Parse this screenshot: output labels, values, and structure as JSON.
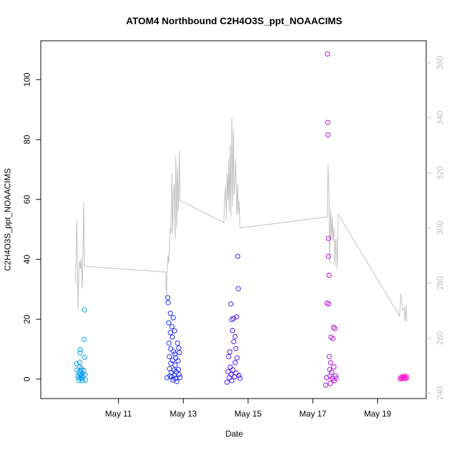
{
  "chart_data": {
    "type": "scatter",
    "title": "ATOM4 Northbound C2H4O3S_ppt_NOAACIMS",
    "xlabel": "Date",
    "ylabel": "C2H4O3S_ppt_NOAACIMS",
    "x_ticks": [
      {
        "x": 11,
        "label": "May 11"
      },
      {
        "x": 13,
        "label": "May 13"
      },
      {
        "x": 15,
        "label": "May 15"
      },
      {
        "x": 17,
        "label": "May 17"
      },
      {
        "x": 19,
        "label": "May 19"
      }
    ],
    "xlim": [
      8.6,
      20.5
    ],
    "ylim": [
      -6.5,
      113
    ],
    "y_ticks": [
      0,
      20,
      40,
      60,
      80,
      100
    ],
    "y2lim": [
      238,
      368
    ],
    "y2_ticks": [
      240,
      260,
      280,
      300,
      320,
      340,
      360
    ],
    "point_color_scale": [
      "#00a9e8",
      "#1f1bf0",
      "#8a10e8",
      "#ff10c8"
    ],
    "line_color": "#c0c0c0",
    "scatter_series": [
      {
        "x": [
          9.7,
          9.72,
          9.75,
          9.77,
          9.78,
          9.79,
          9.8,
          9.8,
          9.81,
          9.82,
          9.82,
          9.83,
          9.84,
          9.85,
          9.86,
          9.87,
          9.88,
          9.88,
          9.9,
          9.92,
          9.94,
          9.95,
          9.96,
          9.97,
          9.98
        ],
        "y": [
          5.1,
          3.0,
          1.0,
          -0.4,
          2.3,
          0.5,
          4.0,
          5.6,
          1.5,
          9.8,
          8.7,
          0.2,
          2.8,
          0.9,
          3.5,
          1.2,
          -0.5,
          0.4,
          1.8,
          2.9,
          13.3,
          23.1,
          7.3,
          1.5,
          -0.3
        ]
      },
      {
        "x": [
          12.5,
          12.52,
          12.53,
          12.55,
          12.56,
          12.57,
          12.58,
          12.59,
          12.6,
          12.6,
          12.61,
          12.62,
          12.63,
          12.64,
          12.65,
          12.66,
          12.67,
          12.68,
          12.69,
          12.7,
          12.71,
          12.72,
          12.73,
          12.74,
          12.75,
          12.76,
          12.77,
          12.78,
          12.8,
          12.82,
          12.84,
          12.85,
          12.86,
          12.87,
          12.88,
          12.9
        ],
        "y": [
          0.5,
          27.2,
          25.5,
          18.8,
          12.0,
          7.5,
          3.5,
          1.0,
          22.0,
          15.5,
          10.1,
          5.2,
          2.3,
          0.8,
          17.5,
          14.0,
          6.3,
          -0.3,
          20.5,
          9.2,
          3.0,
          1.2,
          16.1,
          8.4,
          4.7,
          0.2,
          7.1,
          2.5,
          -0.8,
          12.0,
          6.1,
          3.2,
          10.4,
          1.5,
          8.9,
          0.6
        ]
      },
      {
        "x": [
          14.35,
          14.38,
          14.4,
          14.42,
          14.44,
          14.45,
          14.47,
          14.48,
          14.5,
          14.5,
          14.52,
          14.53,
          14.55,
          14.56,
          14.58,
          14.6,
          14.6,
          14.62,
          14.63,
          14.65,
          14.66,
          14.68,
          14.7,
          14.72,
          14.75
        ],
        "y": [
          -1.0,
          2.5,
          7.5,
          0.5,
          9.1,
          4.0,
          25.1,
          1.5,
          19.9,
          -0.5,
          16.2,
          3.1,
          20.3,
          12.5,
          0.8,
          14.2,
          5.5,
          10.2,
          2.0,
          20.8,
          7.1,
          41.0,
          30.2,
          1.2,
          0.3
        ]
      },
      {
        "x": [
          17.4,
          17.42,
          17.44,
          17.45,
          17.46,
          17.47,
          17.48,
          17.48,
          17.49,
          17.5,
          17.51,
          17.52,
          17.53,
          17.54,
          17.55,
          17.56,
          17.58,
          17.6,
          17.62,
          17.64,
          17.65,
          17.66,
          17.68,
          17.7,
          17.72
        ],
        "y": [
          -2.0,
          0.5,
          25.4,
          108.6,
          85.7,
          81.5,
          47.0,
          41.0,
          25.1,
          34.7,
          7.5,
          3.2,
          1.0,
          -1.5,
          5.5,
          14.0,
          2.3,
          0.2,
          13.5,
          17.3,
          4.1,
          -0.5,
          16.9,
          1.1,
          0.3
        ]
      },
      {
        "x": [
          19.7,
          19.73,
          19.75,
          19.77,
          19.8,
          19.83,
          19.85,
          19.88,
          19.9
        ],
        "y": [
          0.2,
          0.6,
          0.1,
          0.8,
          0.3,
          1.0,
          0.5,
          0.2,
          0.7
        ]
      }
    ],
    "line_y2": {
      "x": [
        9.68,
        9.71,
        9.73,
        9.75,
        9.78,
        9.8,
        9.83,
        9.85,
        9.88,
        9.9,
        9.93,
        9.95,
        9.98,
        12.45,
        12.48,
        12.5,
        12.53,
        12.55,
        12.58,
        12.6,
        12.62,
        12.65,
        12.67,
        12.7,
        12.72,
        12.75,
        12.77,
        12.8,
        12.82,
        12.85,
        12.88,
        12.9,
        14.25,
        14.28,
        14.3,
        14.33,
        14.35,
        14.38,
        14.4,
        14.42,
        14.45,
        14.47,
        14.5,
        14.52,
        14.55,
        14.57,
        14.6,
        14.62,
        14.65,
        14.68,
        14.7,
        14.72,
        14.75,
        17.45,
        17.47,
        17.5,
        17.52,
        17.55,
        17.57,
        17.6,
        17.62,
        17.65,
        17.68,
        17.7,
        17.72,
        17.75,
        17.78,
        19.68,
        19.72,
        19.75,
        19.78,
        19.82,
        19.85,
        19.88,
        19.9
      ],
      "y": [
        280,
        303,
        292,
        270,
        286,
        288,
        285,
        289,
        278,
        290,
        309,
        286,
        286,
        284,
        275,
        284,
        290,
        287,
        295,
        300,
        298,
        320,
        298,
        313,
        316,
        296,
        326,
        300,
        322,
        306,
        328,
        310,
        302,
        310,
        315,
        303,
        320,
        310,
        325,
        306,
        330,
        304,
        340,
        308,
        336,
        312,
        318,
        325,
        305,
        316,
        305,
        310,
        300,
        304,
        323,
        312,
        287,
        307,
        296,
        304,
        295,
        300,
        286,
        295,
        296,
        285,
        305,
        268,
        276,
        273,
        270,
        271,
        266,
        272,
        266
      ]
    }
  }
}
